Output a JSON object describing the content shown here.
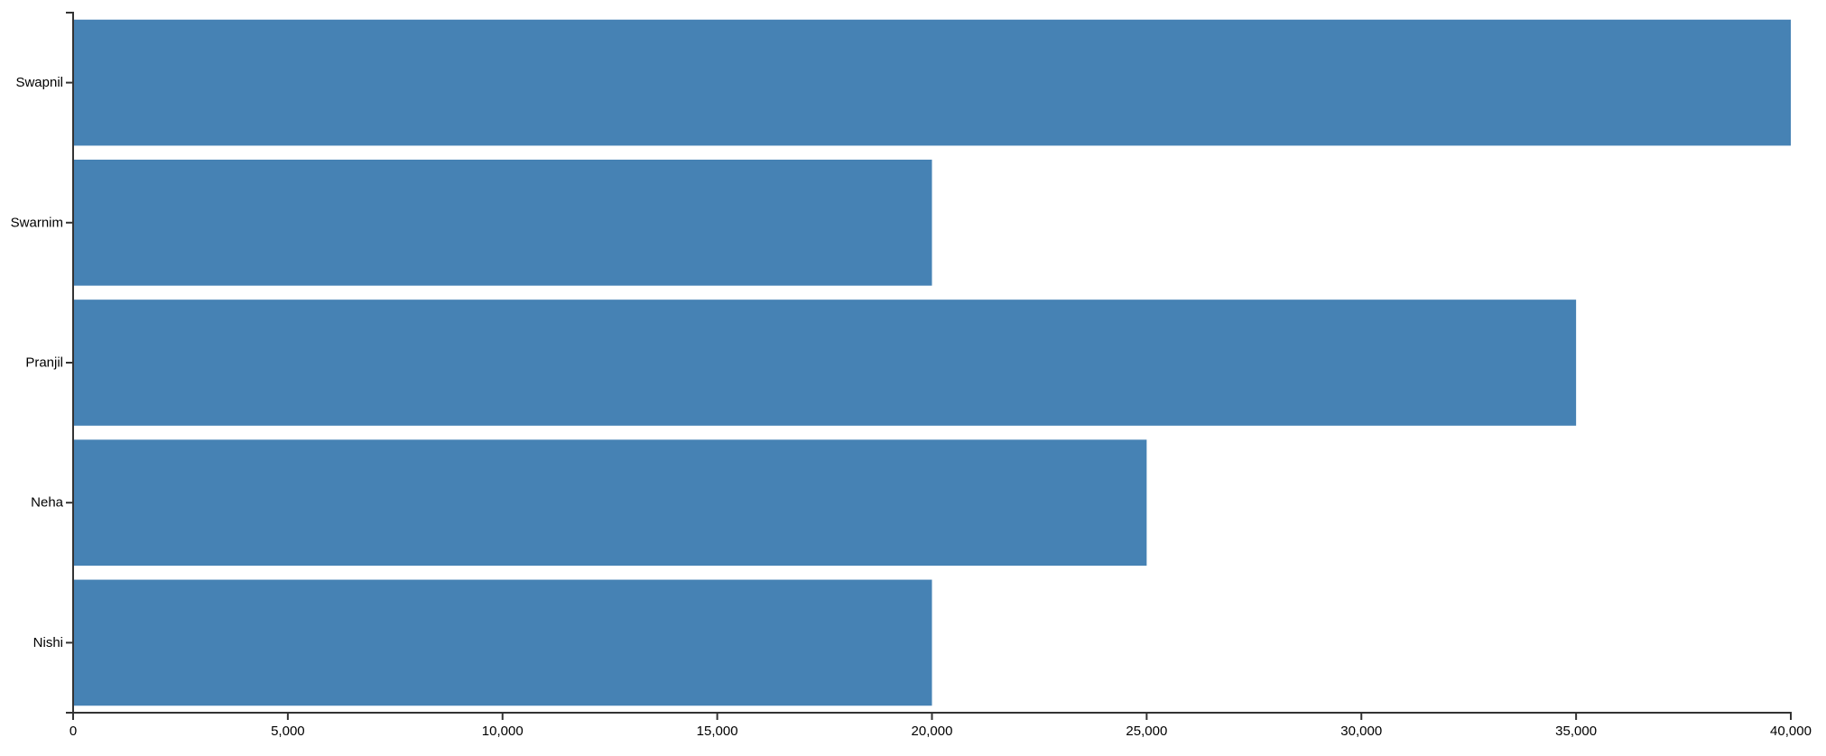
{
  "chart_data": {
    "type": "bar",
    "orientation": "horizontal",
    "categories": [
      "Swapnil",
      "Swarnim",
      "Pranjil",
      "Neha",
      "Nishi"
    ],
    "values": [
      40000,
      20000,
      35000,
      25000,
      20000
    ],
    "xlim": [
      0,
      40000
    ],
    "x_ticks": [
      0,
      5000,
      10000,
      15000,
      20000,
      25000,
      30000,
      35000,
      40000
    ],
    "x_tick_labels": [
      "0",
      "5,000",
      "10,000",
      "15,000",
      "20,000",
      "25,000",
      "30,000",
      "35,000",
      "40,000"
    ],
    "title": "",
    "xlabel": "",
    "ylabel": "",
    "grid": false,
    "legend": "none",
    "bar_color": "#4682b4"
  }
}
